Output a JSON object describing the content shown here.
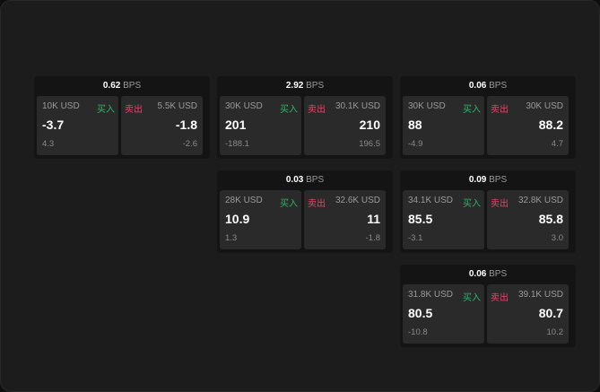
{
  "colors": {
    "buy": "#2fb36b",
    "sell": "#e8446a",
    "background": "#1c1c1c"
  },
  "bps_unit": "BPS",
  "buy_label": "买入",
  "sell_label": "卖出",
  "cards": [
    {
      "bps": "0.62",
      "buy": {
        "qty": "10K USD",
        "price": "-3.7",
        "diff": "4.3"
      },
      "sell": {
        "qty": "5.5K USD",
        "price": "-1.8",
        "diff": "-2.6"
      }
    },
    {
      "bps": "2.92",
      "buy": {
        "qty": "30K USD",
        "price": "201",
        "diff": "-188.1"
      },
      "sell": {
        "qty": "30.1K USD",
        "price": "210",
        "diff": "196.5"
      }
    },
    {
      "bps": "0.06",
      "buy": {
        "qty": "30K USD",
        "price": "88",
        "diff": "-4.9"
      },
      "sell": {
        "qty": "30K USD",
        "price": "88.2",
        "diff": "4.7"
      }
    },
    {
      "bps": "0.03",
      "buy": {
        "qty": "28K USD",
        "price": "10.9",
        "diff": "1.3"
      },
      "sell": {
        "qty": "32.6K USD",
        "price": "11",
        "diff": "-1.8"
      }
    },
    {
      "bps": "0.09",
      "buy": {
        "qty": "34.1K USD",
        "price": "85.5",
        "diff": "-3.1"
      },
      "sell": {
        "qty": "32.8K USD",
        "price": "85.8",
        "diff": "3.0"
      }
    },
    {
      "bps": "0.06",
      "buy": {
        "qty": "31.8K USD",
        "price": "80.5",
        "diff": "-10.8"
      },
      "sell": {
        "qty": "39.1K USD",
        "price": "80.7",
        "diff": "10.2"
      }
    }
  ]
}
